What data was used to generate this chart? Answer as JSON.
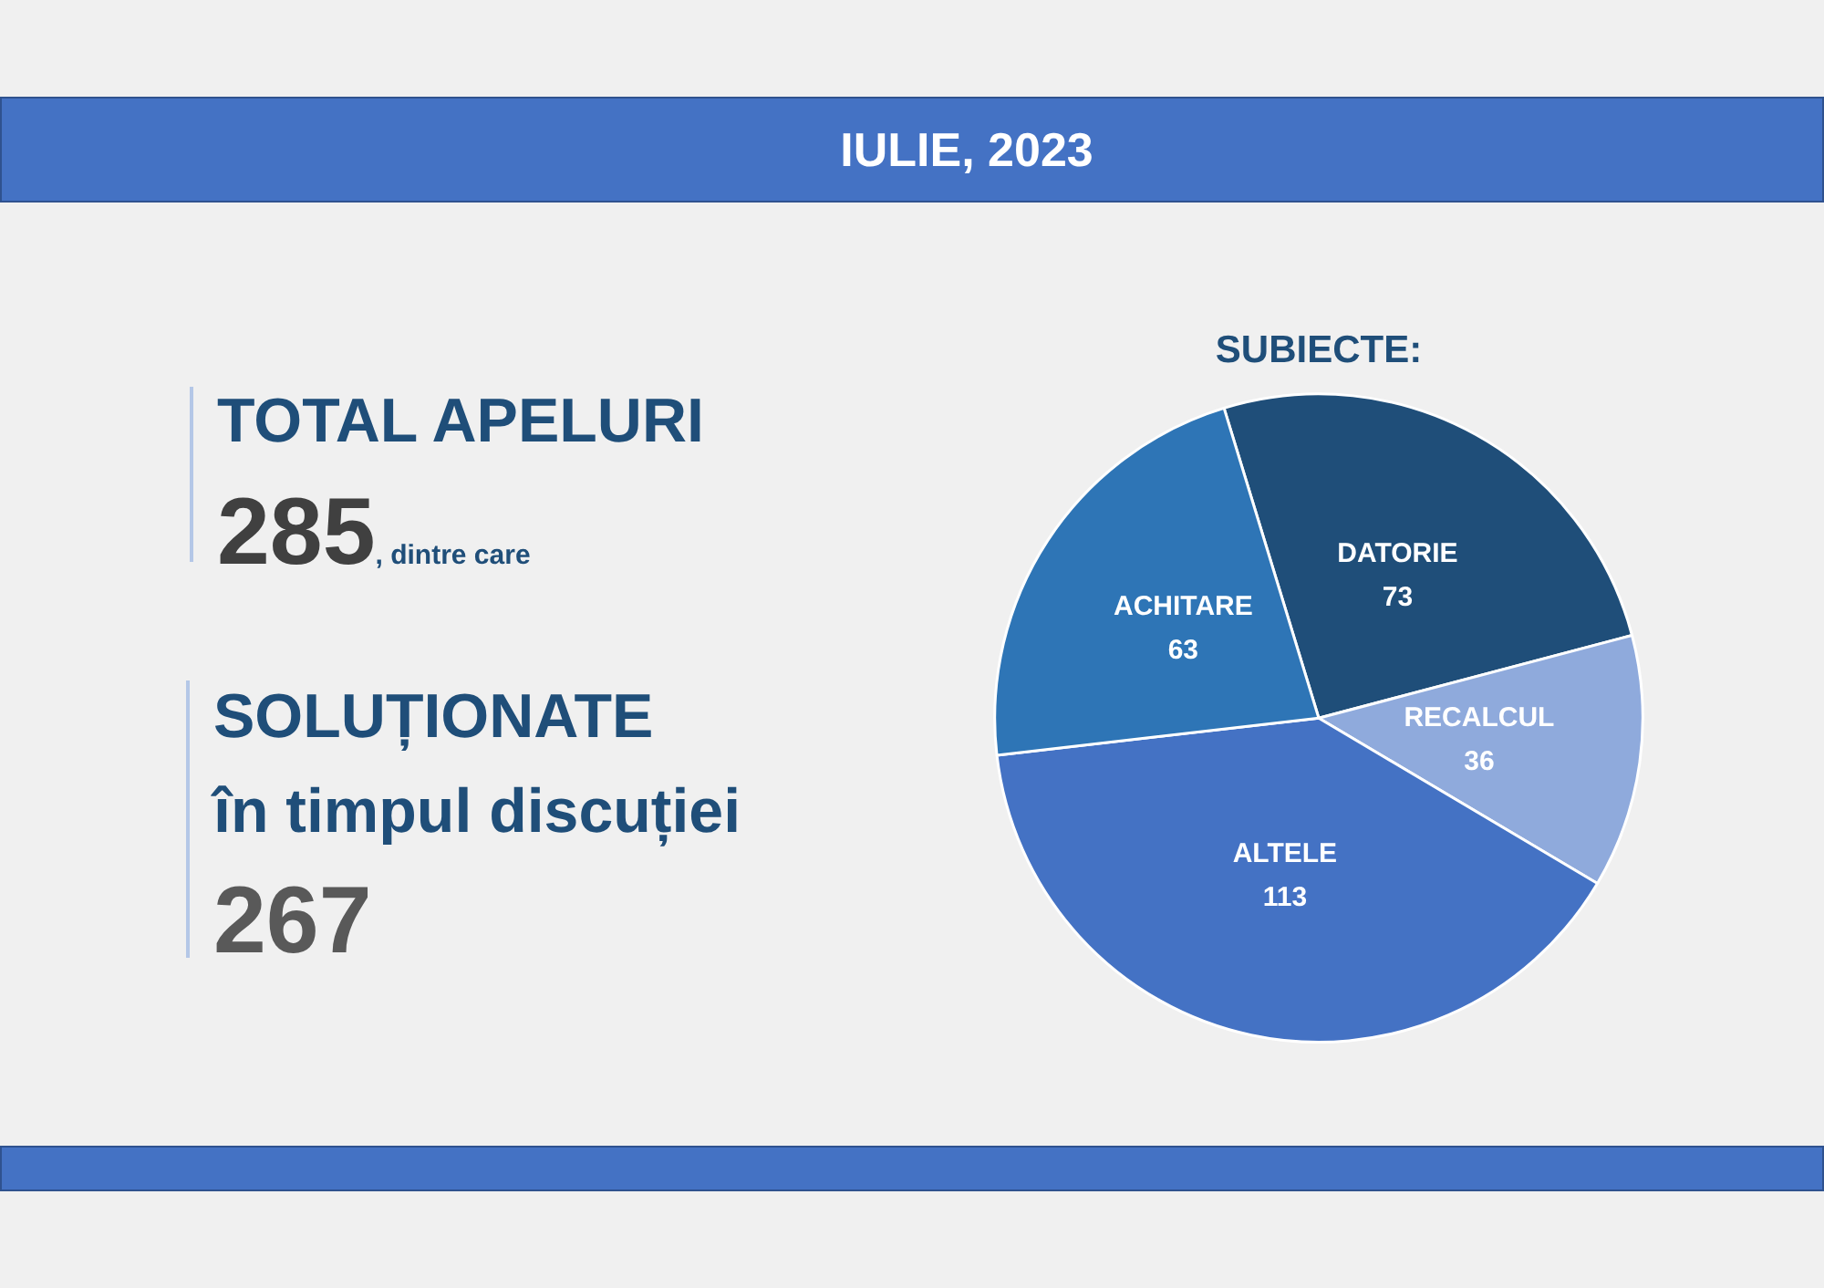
{
  "chart_data": {
    "type": "pie",
    "title": "IULIE, 2023",
    "subtitle": "SUBIECTE:",
    "annotations": [
      "TOTAL APELURI",
      "285",
      ", dintre care",
      "SOLUȚIONATE",
      "în timpul discuției",
      "267"
    ],
    "categories": [
      "DATORIE",
      "RECALCUL",
      "ALTELE",
      "ACHITARE"
    ],
    "values": [
      73,
      36,
      113,
      63
    ],
    "colors": [
      "#1f4e79",
      "#8faadc",
      "#4472c4",
      "#2e75b6"
    ],
    "data_labels": true
  }
}
